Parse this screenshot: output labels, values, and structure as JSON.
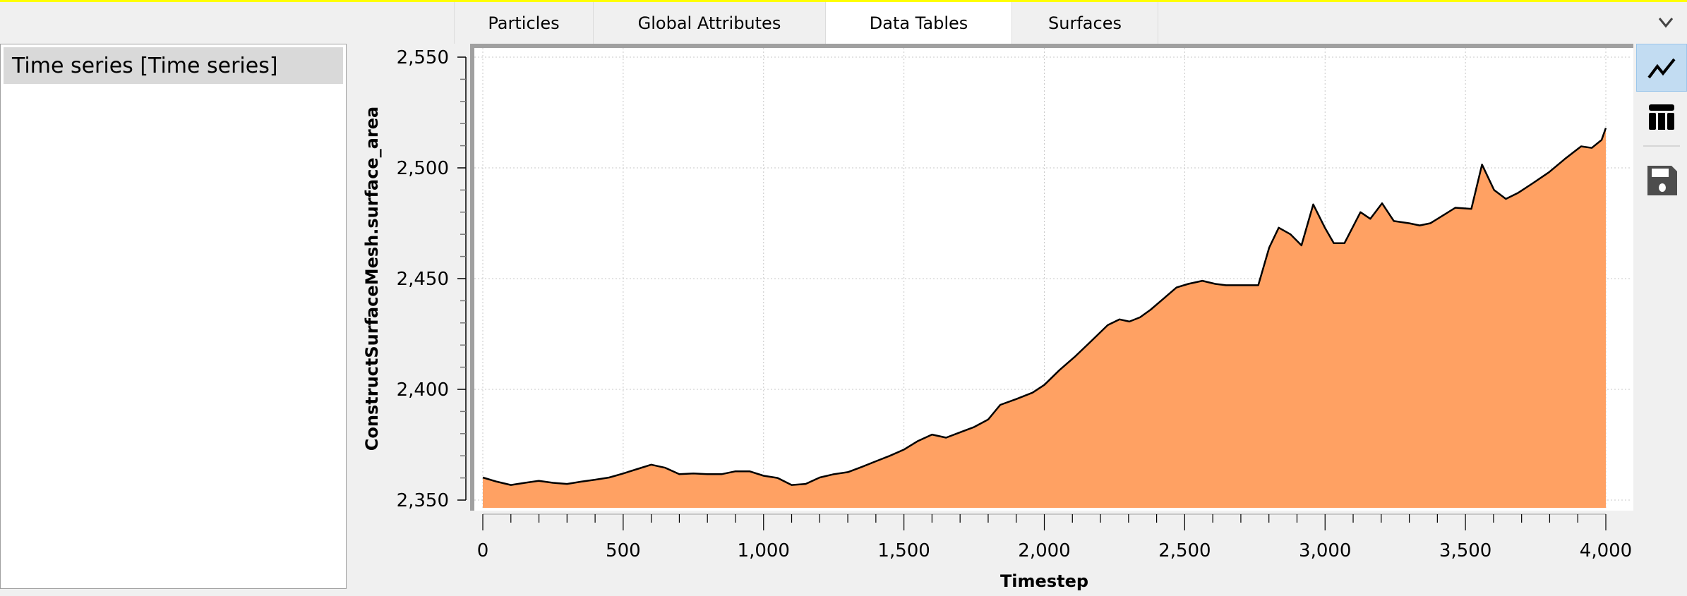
{
  "tabs": [
    {
      "label": "Particles",
      "active": false
    },
    {
      "label": "Global Attributes",
      "active": false
    },
    {
      "label": "Data Tables",
      "active": true
    },
    {
      "label": "Surfaces",
      "active": false
    }
  ],
  "tab_menu_icon": "chevron-down-icon",
  "left_panel": {
    "items": [
      {
        "label": "Time series [Time series]",
        "selected": true
      }
    ]
  },
  "toolbar": {
    "buttons": [
      {
        "icon": "line-chart-icon",
        "active": true
      },
      {
        "icon": "table-icon",
        "active": false
      },
      {
        "icon": "save-icon",
        "active": false
      }
    ]
  },
  "colors": {
    "accent_bar": "#ffff00",
    "fill": "#ffa163",
    "line": "#000000",
    "selected_tool": "#c2dcf2"
  },
  "chart_data": {
    "type": "area",
    "xlabel": "Timestep",
    "ylabel": "ConstructSurfaceMesh.surface_area",
    "xlim": [
      0,
      4000
    ],
    "ylim": [
      2350,
      2550
    ],
    "xticks": [
      0,
      500,
      1000,
      1500,
      2000,
      2500,
      3000,
      3500,
      4000
    ],
    "xtick_labels": [
      "0",
      "500",
      "1,000",
      "1,500",
      "2,000",
      "2,500",
      "3,000",
      "3,500",
      "4,000"
    ],
    "yticks": [
      2350,
      2400,
      2450,
      2500,
      2550
    ],
    "ytick_labels": [
      "2,350",
      "2,400",
      "2,450",
      "2,500",
      "2,550"
    ],
    "grid": true,
    "x": [
      0,
      50,
      100,
      150,
      200,
      250,
      300,
      350,
      400,
      450,
      500,
      550,
      600,
      650,
      700,
      750,
      800,
      850,
      900,
      950,
      1000,
      1050,
      1100,
      1150,
      1200,
      1250,
      1300,
      1350,
      1400,
      1450,
      1500,
      1550,
      1600,
      1650,
      1700,
      1750,
      1800,
      1843,
      1900,
      1958,
      2000,
      2054,
      2111,
      2169,
      2226,
      2268,
      2303,
      2341,
      2379,
      2425,
      2471,
      2513,
      2563,
      2609,
      2647,
      2762,
      2801,
      2835,
      2877,
      2916,
      2958,
      3000,
      3031,
      3069,
      3126,
      3161,
      3203,
      3245,
      3299,
      3337,
      3375,
      3421,
      3464,
      3521,
      3559,
      3602,
      3644,
      3686,
      3739,
      3797,
      3854,
      3912,
      3950,
      3985,
      4000
    ],
    "y": [
      2360.2,
      2358.3,
      2356.8,
      2357.8,
      2358.7,
      2357.8,
      2357.3,
      2358.3,
      2359.2,
      2360.2,
      2362,
      2364,
      2366,
      2364.6,
      2361.7,
      2362,
      2361.7,
      2361.7,
      2363,
      2363,
      2361,
      2360,
      2356.8,
      2357.3,
      2360.2,
      2361.7,
      2362.6,
      2365,
      2367.5,
      2370,
      2372.8,
      2376.7,
      2379.6,
      2378.2,
      2380.6,
      2383,
      2386.4,
      2393,
      2395.6,
      2398.5,
      2402,
      2408.7,
      2415,
      2422,
      2429,
      2431.6,
      2430.6,
      2432.5,
      2436,
      2441,
      2446,
      2447.6,
      2449,
      2447.6,
      2447,
      2447,
      2464,
      2473,
      2470,
      2465,
      2483.5,
      2472.8,
      2466,
      2466,
      2480,
      2477,
      2484,
      2476,
      2475,
      2474,
      2475,
      2478.6,
      2482,
      2481.5,
      2501.5,
      2490,
      2486,
      2488.6,
      2493,
      2498,
      2504,
      2509.7,
      2509,
      2512.6,
      2518
    ]
  }
}
